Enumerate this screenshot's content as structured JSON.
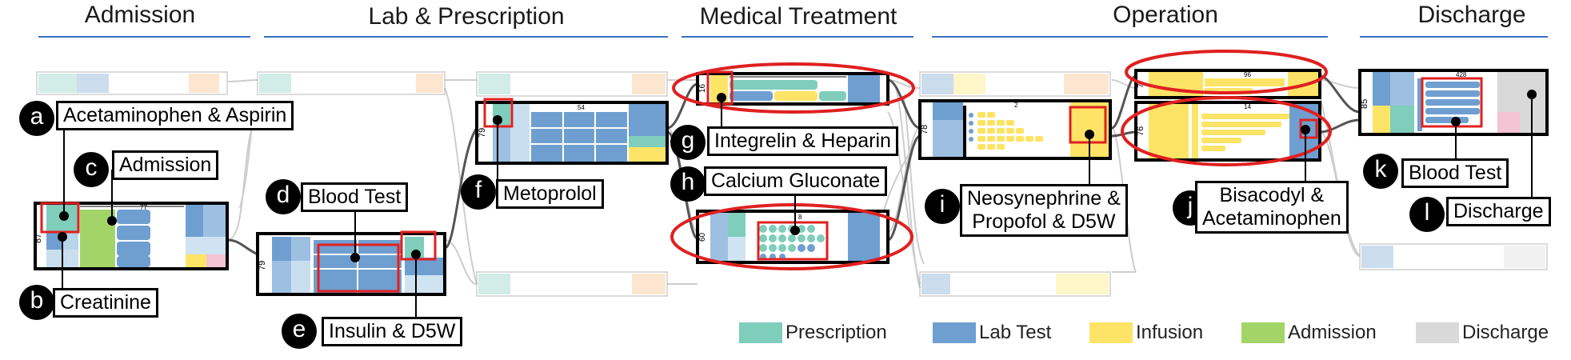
{
  "stages": [
    {
      "name": "Admission"
    },
    {
      "name": "Lab & Prescription"
    },
    {
      "name": "Medical Treatment"
    },
    {
      "name": "Operation"
    },
    {
      "name": "Discharge"
    }
  ],
  "box_numbers": {
    "a_count": "87",
    "d_count": "79",
    "f_count": "79",
    "g_count": "16",
    "h_count": "60",
    "i_count": "78",
    "j_top_count": "7",
    "j_bottom_count": "76",
    "k_count": "85"
  },
  "callouts": [
    {
      "letter": "a",
      "label": "Acetaminophen & Aspirin"
    },
    {
      "letter": "b",
      "label": "Creatinine"
    },
    {
      "letter": "c",
      "label": "Admission"
    },
    {
      "letter": "d",
      "label": "Blood Test"
    },
    {
      "letter": "e",
      "label": "Insulin & D5W"
    },
    {
      "letter": "f",
      "label": "Metoprolol"
    },
    {
      "letter": "g",
      "label": "Integrelin & Heparin"
    },
    {
      "letter": "h",
      "label": "Calcium Gluconate"
    },
    {
      "letter": "i",
      "label_line1": "Neosynephrine &",
      "label_line2": "Propofol & D5W"
    },
    {
      "letter": "j",
      "label_line1": "Bisacodyl &",
      "label_line2": "Acetaminophen"
    },
    {
      "letter": "k",
      "label": "Blood Test"
    },
    {
      "letter": "l",
      "label": "Discharge"
    }
  ],
  "legend": [
    {
      "label": "Prescription",
      "color": "#7fcdbb"
    },
    {
      "label": "Lab Test",
      "color": "#6f9fd0"
    },
    {
      "label": "Infusion",
      "color": "#fde466"
    },
    {
      "label": "Admission",
      "color": "#a3d468"
    },
    {
      "label": "Discharge",
      "color": "#d9d9d9"
    }
  ],
  "colors": {
    "prescription": "#7fcdbb",
    "lab_test": "#6f9fd0",
    "infusion": "#fde466",
    "admission": "#a3d468",
    "discharge": "#d9d9d9",
    "highlight": "#e02020",
    "stage_rule": "#3b6fc2"
  }
}
